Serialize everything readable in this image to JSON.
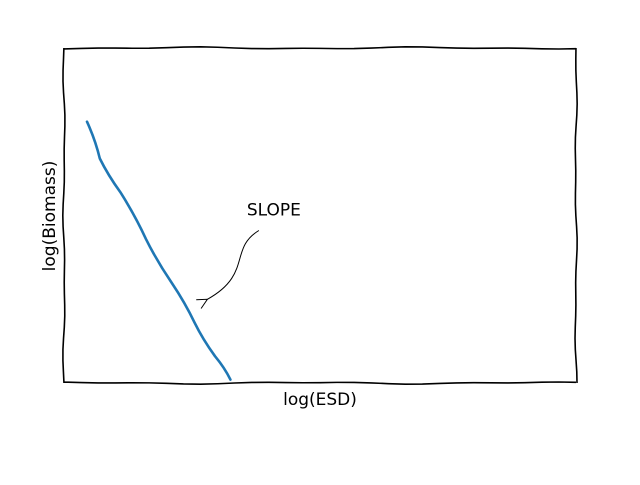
{
  "chart_data": {
    "type": "line",
    "title": "",
    "xlabel": "log(ESD)",
    "ylabel": "log(Biomass)",
    "xlim": [
      0,
      1
    ],
    "ylim": [
      0,
      1
    ],
    "grid": false,
    "legend": "none",
    "series": [
      {
        "color": "#1f77b4",
        "x": [
          0.045,
          0.07,
          0.11,
          0.16,
          0.21,
          0.255,
          0.295,
          0.325
        ],
        "y": [
          0.78,
          0.67,
          0.57,
          0.43,
          0.3,
          0.18,
          0.08,
          0.01
        ]
      }
    ],
    "annotations": [
      {
        "text": "SLOPE",
        "text_pos": [
          0.41,
          0.5
        ],
        "arrow_to": [
          0.28,
          0.25
        ]
      }
    ]
  }
}
